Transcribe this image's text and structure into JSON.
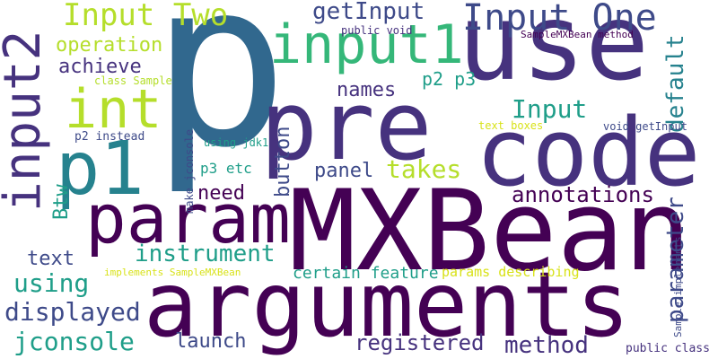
{
  "palette": {
    "background": "#ffffff",
    "dark_purple": "#440154",
    "purple": "#46327e",
    "indigo": "#3e4a89",
    "blue": "#31688e",
    "teal_blue": "#26828e",
    "teal": "#1f9e89",
    "green": "#35b779",
    "light_green": "#6ece58",
    "lime": "#b5de2b",
    "yellow": "#d8e219"
  },
  "words": {
    "p": "p",
    "use": "use",
    "code": "code",
    "pre": "pre",
    "MXBean": "MXBean",
    "arguments": "arguments",
    "param": "param",
    "p1": "p1",
    "input1": "input1",
    "input2": "input2",
    "int": "int",
    "Input_One": "Input One",
    "Input_Two": "Input Two",
    "getInput": "getInput",
    "operation": "operation",
    "achieve": "achieve",
    "names": "names",
    "p2_p3": "p2 p3",
    "Input": "Input",
    "default": "default",
    "button": "button",
    "panel": "panel",
    "takes": "takes",
    "need": "need",
    "annotations": "annotations",
    "parameter": "parameter",
    "Btw": "Btw",
    "text": "text",
    "instrument": "instrument",
    "using": "using",
    "displayed": "displayed",
    "jconsole": "jconsole",
    "launch": "launch",
    "registered": "registered",
    "method": "method",
    "certain_feature": "certain feature",
    "params_describing": "params describing",
    "public_void": "public void",
    "SampleMXBean_method": "SampleMXBean method",
    "class_Sample": "class Sample",
    "make_jconsole": "make jconsole",
    "p2_instead": "p2 instead",
    "using_jdk1": "using jdk1",
    "p3_etc": "p3 etc",
    "void_getInput": "void getInput",
    "text_boxes": "text boxes",
    "implements_SampleMXBean": "implements SampleMXBean",
    "Sample_implements": "Sample implements",
    "public_class": "public class"
  }
}
